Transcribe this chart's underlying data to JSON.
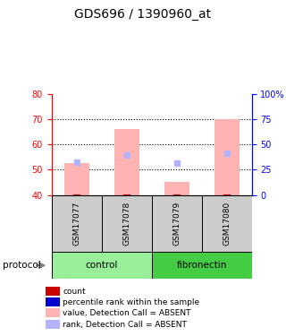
{
  "title": "GDS696 / 1390960_at",
  "samples": [
    "GSM17077",
    "GSM17078",
    "GSM17079",
    "GSM17080"
  ],
  "groups": [
    "control",
    "control",
    "fibronectin",
    "fibronectin"
  ],
  "group_labels": [
    "control",
    "fibronectin"
  ],
  "ylim_left": [
    40,
    80
  ],
  "ylim_right": [
    0,
    100
  ],
  "yticks_left": [
    40,
    50,
    60,
    70,
    80
  ],
  "yticks_right": [
    0,
    25,
    50,
    75,
    100
  ],
  "ytick_labels_right": [
    "0",
    "25",
    "50",
    "75",
    "100%"
  ],
  "bar_bottom": 40,
  "bar_values": [
    52.5,
    66.0,
    45.0,
    70.0
  ],
  "rank_values": [
    53.0,
    56.0,
    52.5,
    56.5
  ],
  "bar_color": "#ffb3b3",
  "rank_color": "#b3b3ff",
  "count_color": "#cc0000",
  "pct_rank_color": "#0000cc",
  "group_colors": {
    "control": "#99ee99",
    "fibronectin": "#33cc33"
  },
  "group_bg_light": "#ccffcc",
  "group_bg_dark": "#55dd55",
  "sample_bg": "#cccccc",
  "legend_items": [
    {
      "label": "count",
      "color": "#cc0000",
      "marker": "s"
    },
    {
      "label": "percentile rank within the sample",
      "color": "#0000cc",
      "marker": "s"
    },
    {
      "label": "value, Detection Call = ABSENT",
      "color": "#ffb3b3",
      "marker": "s"
    },
    {
      "label": "rank, Detection Call = ABSENT",
      "color": "#b3b3ff",
      "marker": "s"
    }
  ]
}
